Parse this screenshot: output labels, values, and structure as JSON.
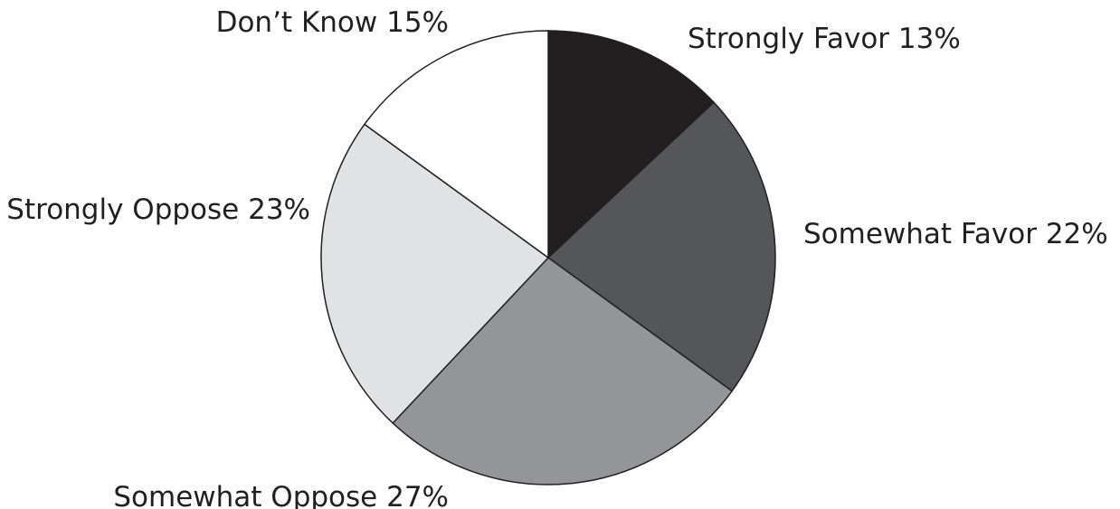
{
  "chart_data": {
    "type": "pie",
    "slices": [
      {
        "label": "Strongly Favor 13%",
        "category": "Strongly Favor",
        "value": 13,
        "color": "#231f20"
      },
      {
        "label": "Somewhat Favor 22%",
        "category": "Somewhat Favor",
        "value": 22,
        "color": "#555659"
      },
      {
        "label": "Somewhat Oppose 27%",
        "category": "Somewhat Oppose",
        "value": 27,
        "color": "#939598"
      },
      {
        "label": "Strongly Oppose 23%",
        "category": "Strongly Oppose",
        "value": 23,
        "color": "#e1e2e3"
      },
      {
        "label": "Don’t Know 15%",
        "category": "Don’t Know",
        "value": 15,
        "color": "#ffffff"
      }
    ],
    "start": "12 o'clock",
    "direction": "clockwise",
    "legend": "none"
  }
}
